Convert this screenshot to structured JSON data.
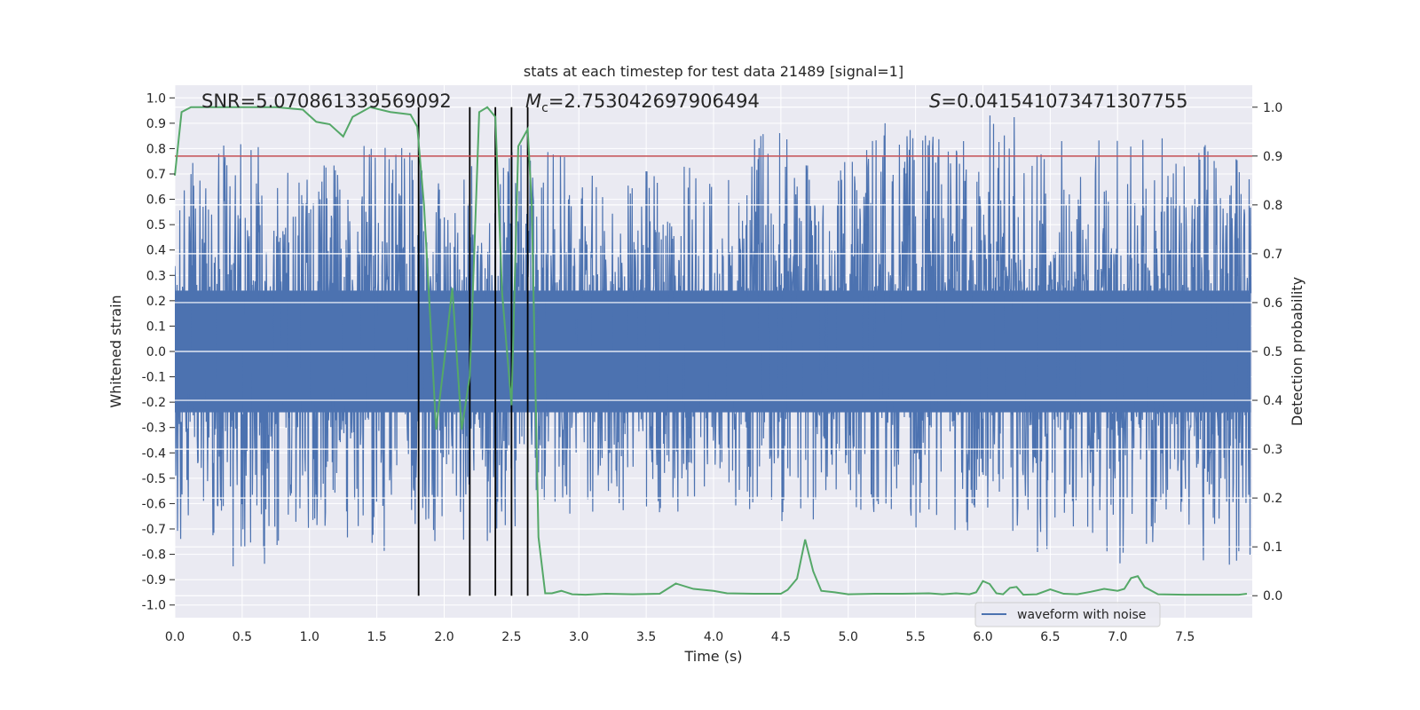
{
  "chart_data": {
    "type": "line",
    "title": "stats at each timestep for test data 21489 [signal=1]",
    "xlabel": "Time (s)",
    "ylabel": "Whitened strain",
    "y2label": "Detection probability",
    "xlim": [
      0.0,
      8.0
    ],
    "ylim": [
      -1.05,
      1.05
    ],
    "y2lim": [
      -0.045,
      1.045
    ],
    "xticks": [
      "0.0",
      "0.5",
      "1.0",
      "1.5",
      "2.0",
      "2.5",
      "3.0",
      "3.5",
      "4.0",
      "4.5",
      "5.0",
      "5.5",
      "6.0",
      "6.5",
      "7.0",
      "7.5"
    ],
    "yticks": [
      "-1.0",
      "-0.9",
      "-0.8",
      "-0.7",
      "-0.6",
      "-0.5",
      "-0.4",
      "-0.3",
      "-0.2",
      "-0.1",
      "0.0",
      "0.1",
      "0.2",
      "0.3",
      "0.4",
      "0.5",
      "0.6",
      "0.7",
      "0.8",
      "0.9",
      "1.0"
    ],
    "y2ticks": [
      "0.0",
      "0.1",
      "0.2",
      "0.3",
      "0.4",
      "0.5",
      "0.6",
      "0.7",
      "0.8",
      "0.9",
      "1.0"
    ],
    "annotations": {
      "snr": {
        "name": "SNR",
        "value": "5.070861339569092"
      },
      "mc": {
        "name": "M",
        "sub": "c",
        "value": "2.753042697906494"
      },
      "s": {
        "name": "S",
        "value": "0.041541073471307755"
      }
    },
    "threshold": {
      "y2": 0.9,
      "color": "#c44e52"
    },
    "vertical_lines_x": [
      1.81,
      2.19,
      2.38,
      2.5,
      2.62
    ],
    "legend": {
      "placement": "lower-right",
      "entries": [
        "waveform with noise"
      ]
    },
    "grid": true,
    "series": [
      {
        "name": "waveform with noise",
        "axis": "left",
        "color": "#4c72b0",
        "envelope": [
          [
            0.0,
            0.74,
            -0.75
          ],
          [
            0.25,
            0.81,
            -0.72
          ],
          [
            0.5,
            0.84,
            -0.92
          ],
          [
            0.75,
            0.8,
            -0.81
          ],
          [
            1.0,
            0.7,
            -0.7
          ],
          [
            1.25,
            0.78,
            -0.74
          ],
          [
            1.5,
            0.83,
            -0.84
          ],
          [
            1.75,
            0.81,
            -0.75
          ],
          [
            2.0,
            0.69,
            -0.8
          ],
          [
            2.25,
            0.8,
            -0.86
          ],
          [
            2.5,
            0.82,
            -0.7
          ],
          [
            2.75,
            0.8,
            -0.66
          ],
          [
            3.0,
            0.77,
            -0.65
          ],
          [
            3.25,
            0.7,
            -0.62
          ],
          [
            3.5,
            0.74,
            -0.64
          ],
          [
            3.75,
            0.78,
            -0.68
          ],
          [
            4.0,
            0.66,
            -0.62
          ],
          [
            4.25,
            0.83,
            -0.65
          ],
          [
            4.5,
            1.0,
            -0.73
          ],
          [
            4.75,
            0.72,
            -0.67
          ],
          [
            5.0,
            0.8,
            -0.7
          ],
          [
            5.25,
            0.95,
            -0.65
          ],
          [
            5.5,
            0.88,
            -0.7
          ],
          [
            5.75,
            0.86,
            -0.7
          ],
          [
            6.0,
            0.95,
            -0.78
          ],
          [
            6.25,
            0.94,
            -0.92
          ],
          [
            6.5,
            0.83,
            -0.78
          ],
          [
            6.75,
            0.92,
            -0.72
          ],
          [
            7.0,
            0.88,
            -0.85
          ],
          [
            7.25,
            0.86,
            -0.82
          ],
          [
            7.5,
            0.8,
            -0.8
          ],
          [
            7.75,
            0.9,
            -0.88
          ],
          [
            7.99,
            0.71,
            -0.82
          ]
        ]
      },
      {
        "name": "",
        "axis": "right",
        "color": "#55a868",
        "x": [
          0.0,
          0.05,
          0.12,
          0.25,
          0.5,
          0.75,
          0.95,
          1.05,
          1.15,
          1.25,
          1.32,
          1.45,
          1.6,
          1.75,
          1.8,
          1.85,
          1.9,
          1.94,
          2.0,
          2.06,
          2.13,
          2.19,
          2.21,
          2.26,
          2.32,
          2.38,
          2.43,
          2.5,
          2.55,
          2.62,
          2.65,
          2.7,
          2.75,
          2.8,
          2.87,
          2.95,
          3.05,
          3.2,
          3.4,
          3.6,
          3.72,
          3.85,
          4.0,
          4.1,
          4.3,
          4.5,
          4.55,
          4.62,
          4.68,
          4.74,
          4.8,
          4.9,
          5.0,
          5.2,
          5.4,
          5.6,
          5.7,
          5.8,
          5.9,
          5.95,
          6.0,
          6.05,
          6.1,
          6.15,
          6.2,
          6.25,
          6.3,
          6.4,
          6.5,
          6.6,
          6.7,
          6.8,
          6.9,
          7.0,
          7.05,
          7.1,
          7.15,
          7.2,
          7.3,
          7.5,
          7.7,
          7.9,
          7.96
        ],
        "values": [
          0.86,
          0.99,
          1.0,
          1.0,
          1.0,
          1.0,
          0.995,
          0.97,
          0.965,
          0.94,
          0.98,
          1.0,
          0.99,
          0.985,
          0.96,
          0.8,
          0.55,
          0.34,
          0.48,
          0.63,
          0.34,
          0.45,
          0.6,
          0.99,
          1.0,
          0.98,
          0.62,
          0.39,
          0.92,
          0.955,
          0.8,
          0.12,
          0.005,
          0.005,
          0.01,
          0.003,
          0.002,
          0.004,
          0.003,
          0.004,
          0.025,
          0.014,
          0.01,
          0.005,
          0.004,
          0.004,
          0.012,
          0.035,
          0.115,
          0.05,
          0.01,
          0.007,
          0.003,
          0.004,
          0.004,
          0.005,
          0.003,
          0.005,
          0.003,
          0.007,
          0.03,
          0.024,
          0.005,
          0.003,
          0.016,
          0.018,
          0.002,
          0.003,
          0.013,
          0.004,
          0.003,
          0.008,
          0.014,
          0.01,
          0.014,
          0.036,
          0.04,
          0.018,
          0.003,
          0.002,
          0.002,
          0.002,
          0.004
        ]
      }
    ]
  }
}
